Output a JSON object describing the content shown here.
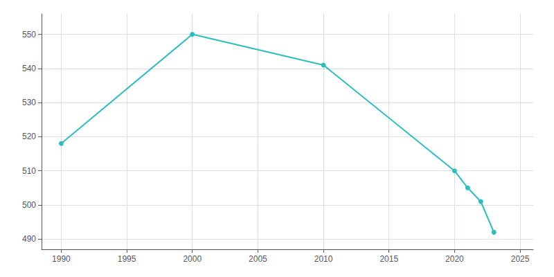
{
  "chart_data": {
    "type": "line",
    "x": [
      1990,
      2000,
      2010,
      2020,
      2021,
      2022,
      2023
    ],
    "values": [
      518,
      550,
      541,
      510,
      505,
      501,
      492
    ],
    "color": "#2abfbf",
    "marker": "circle",
    "xlim": [
      1988.5,
      2026
    ],
    "xticks": [
      1990,
      1995,
      2000,
      2005,
      2010,
      2015,
      2020,
      2025
    ],
    "ylim": [
      487,
      556
    ],
    "yticks": [
      490,
      500,
      510,
      520,
      530,
      540,
      550
    ],
    "grid": true
  }
}
